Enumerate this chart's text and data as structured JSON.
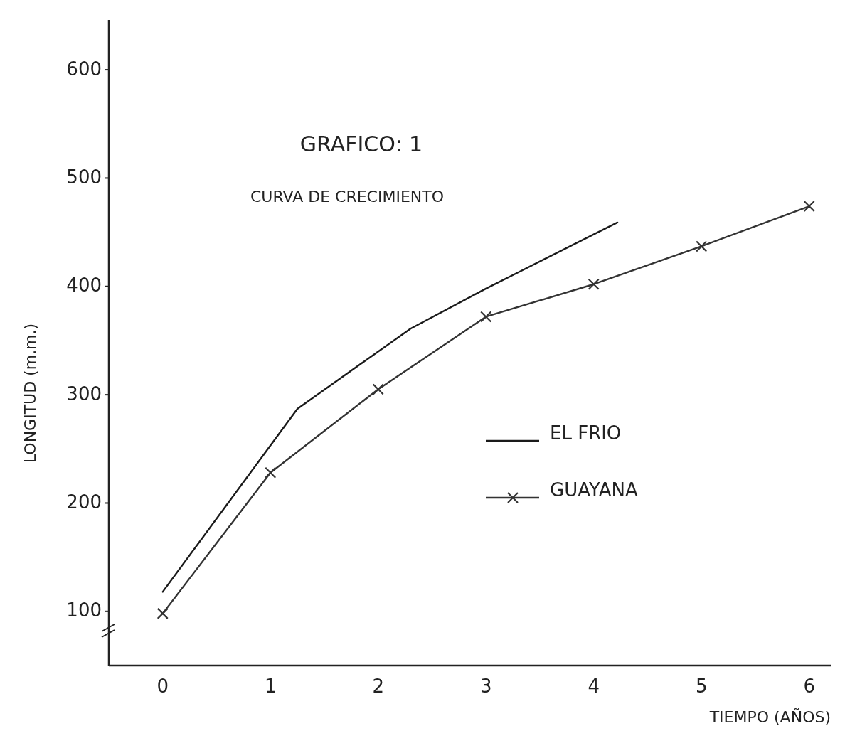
{
  "chart_data": {
    "type": "line",
    "title": "GRAFICO: 1",
    "subtitle": "CURVA DE CRECIMIENTO",
    "xlabel": "TIEMPO (AÑOS)",
    "ylabel": "LONGITUD (m.m.)",
    "xlim": [
      -0.5,
      6.2
    ],
    "xticks": [
      0,
      1,
      2,
      3,
      4,
      5,
      6
    ],
    "ylim": [
      50,
      646
    ],
    "yticks": [
      100,
      200,
      300,
      400,
      500,
      600
    ],
    "series": [
      {
        "name": "EL FRIO",
        "color": "#1a1a1a",
        "marker": "none",
        "x": [
          0,
          1.25,
          2.3,
          3,
          3.3,
          4.22
        ],
        "values": [
          118,
          287,
          361,
          398,
          413,
          459
        ]
      },
      {
        "name": "GUAYANA",
        "color": "#333333",
        "marker": "cross",
        "x": [
          0,
          1,
          2,
          3,
          4,
          5,
          6
        ],
        "values": [
          98,
          228,
          305,
          372,
          402,
          437,
          474
        ]
      }
    ],
    "legend": "right",
    "grid": false,
    "line_style": "solid"
  }
}
